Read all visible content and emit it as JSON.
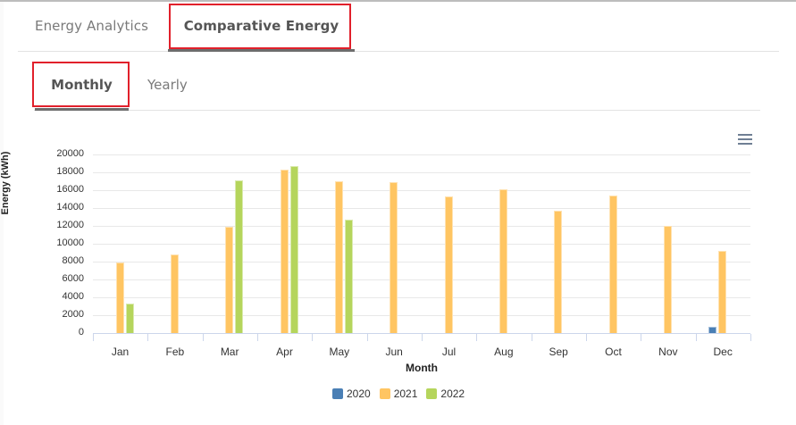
{
  "tabs": {
    "main": [
      {
        "label": "Energy Analytics",
        "active": false
      },
      {
        "label": "Comparative Energy",
        "active": true
      }
    ],
    "sub": [
      {
        "label": "Monthly",
        "active": true
      },
      {
        "label": "Yearly",
        "active": false
      }
    ]
  },
  "chart_menu_icon": "hamburger-menu-icon",
  "colors": {
    "2020": "#4a7fb5",
    "2021": "#ffc562",
    "2022": "#b5d55c",
    "highlight": "#e1202b"
  },
  "chart_data": {
    "type": "bar",
    "title": "",
    "xlabel": "Month",
    "ylabel": "Energy (kWh)",
    "ylim": [
      0,
      20000
    ],
    "yticks": [
      0,
      2000,
      4000,
      6000,
      8000,
      10000,
      12000,
      14000,
      16000,
      18000,
      20000
    ],
    "grid": true,
    "legend_position": "bottom",
    "categories": [
      "Jan",
      "Feb",
      "Mar",
      "Apr",
      "May",
      "Jun",
      "Jul",
      "Aug",
      "Sep",
      "Oct",
      "Nov",
      "Dec"
    ],
    "series": [
      {
        "name": "2020",
        "values": [
          0,
          0,
          0,
          0,
          0,
          0,
          0,
          0,
          0,
          0,
          0,
          700
        ]
      },
      {
        "name": "2021",
        "values": [
          7900,
          8800,
          11900,
          18300,
          17000,
          16900,
          15300,
          16100,
          13700,
          15400,
          12000,
          9200
        ]
      },
      {
        "name": "2022",
        "values": [
          3300,
          0,
          17100,
          18700,
          12700,
          0,
          0,
          0,
          0,
          0,
          0,
          0
        ]
      }
    ]
  }
}
